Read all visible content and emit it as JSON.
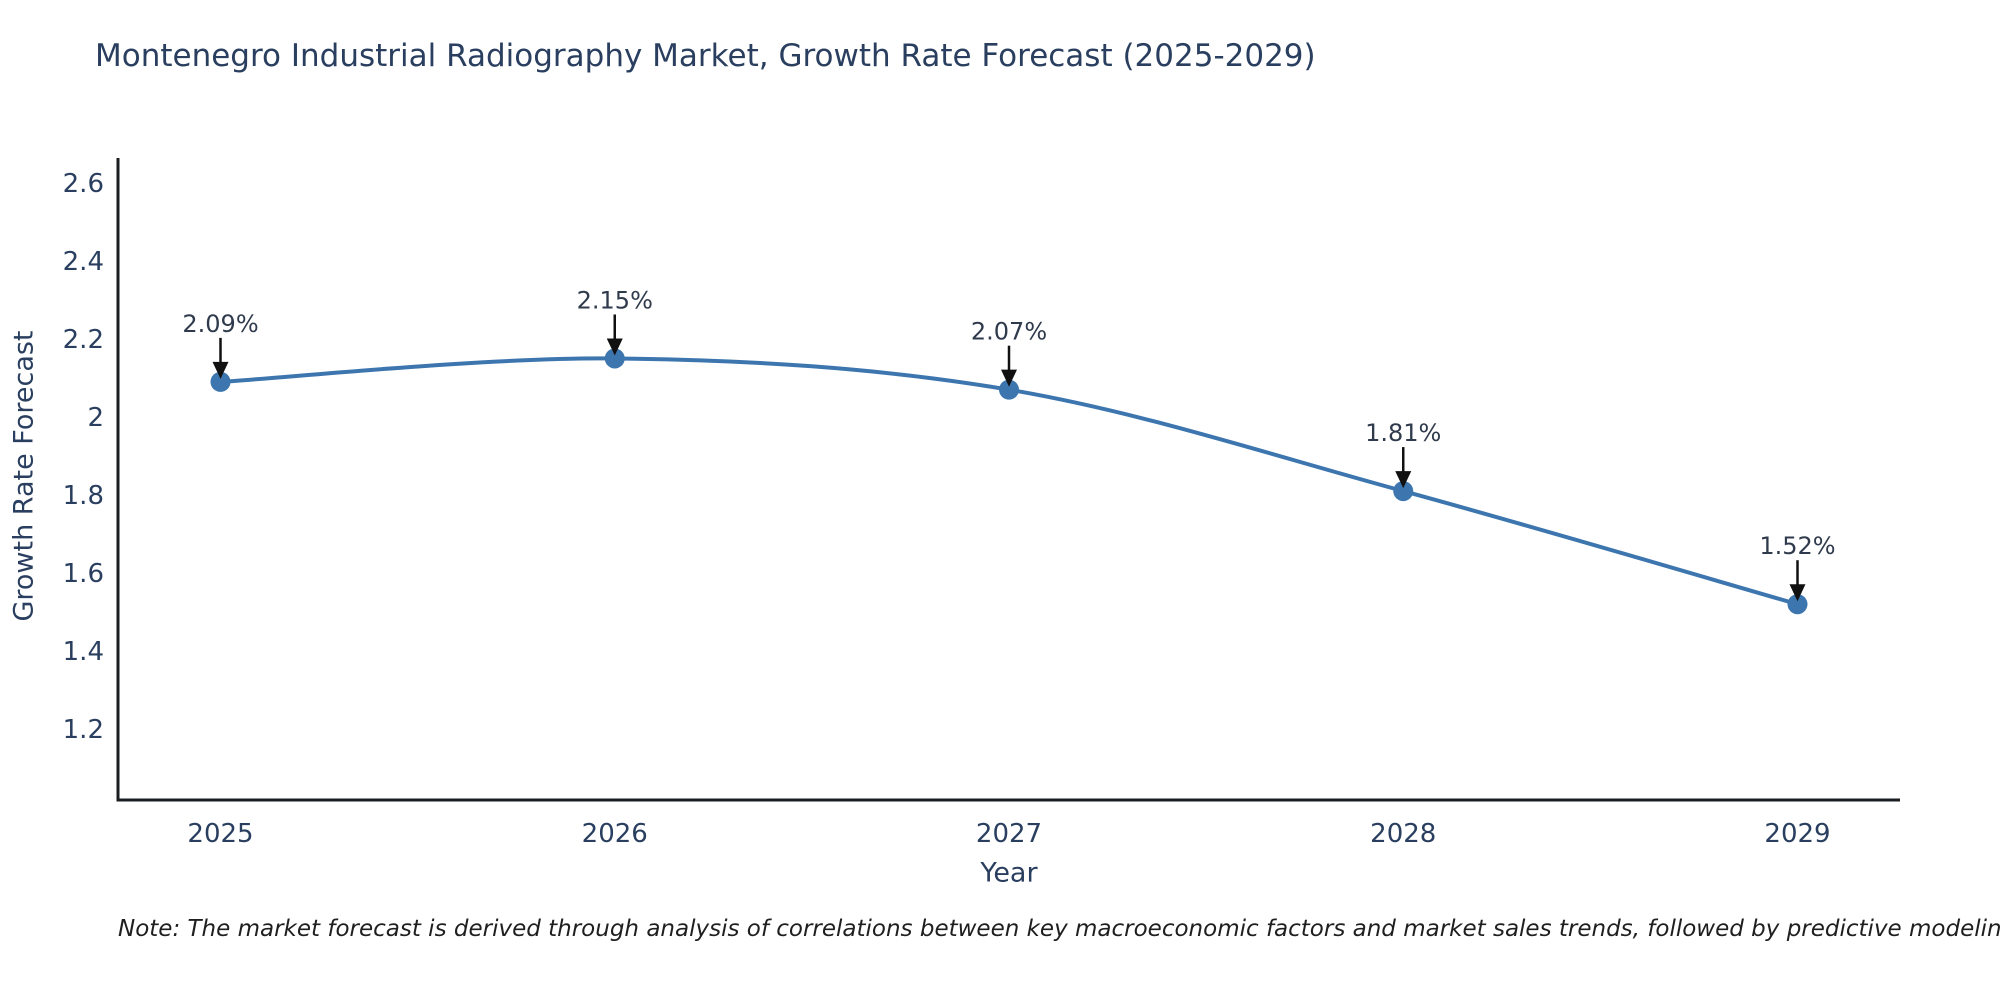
{
  "title": "Montenegro Industrial Radiography Market, Growth Rate Forecast (2025-2029)",
  "note": "Note: The market forecast is derived through analysis of correlations between key macroeconomic factors and market sales trends, followed by predictive modeling to project future sales",
  "chart_data": {
    "type": "line",
    "title": "Montenegro Industrial Radiography Market, Growth Rate Forecast (2025-2029)",
    "xlabel": "Year",
    "ylabel": "Growth Rate Forecast",
    "categories": [
      "2025",
      "2026",
      "2027",
      "2028",
      "2029"
    ],
    "x": [
      2025,
      2026,
      2027,
      2028,
      2029
    ],
    "series": [
      {
        "name": "Growth Rate Forecast",
        "values": [
          2.09,
          2.15,
          2.07,
          1.81,
          1.52
        ]
      }
    ],
    "point_labels": [
      "2.09%",
      "2.15%",
      "2.07%",
      "1.81%",
      "1.52%"
    ],
    "ytick_values": [
      2.6,
      2.4,
      2.2,
      2.0,
      1.8,
      1.6,
      1.4,
      1.2
    ],
    "ytick_labels": [
      "2.6",
      "2.4",
      "2.2",
      "2",
      "1.8",
      "1.6",
      "1.4",
      "1.2"
    ],
    "xlim": [
      2024.74,
      2029.26
    ],
    "ylim": [
      1.018,
      2.664
    ],
    "grid": false,
    "legend": "none",
    "line_style": "spline",
    "colors": {
      "line": "#3d76af",
      "marker": "#3d76af",
      "axis": "#1a1d21",
      "title_text": "#2a3f5f",
      "tick_text": "#2a3f5f",
      "annotation_text": "#2f3b4c",
      "arrow": "#111111",
      "background": "#ffffff"
    }
  }
}
